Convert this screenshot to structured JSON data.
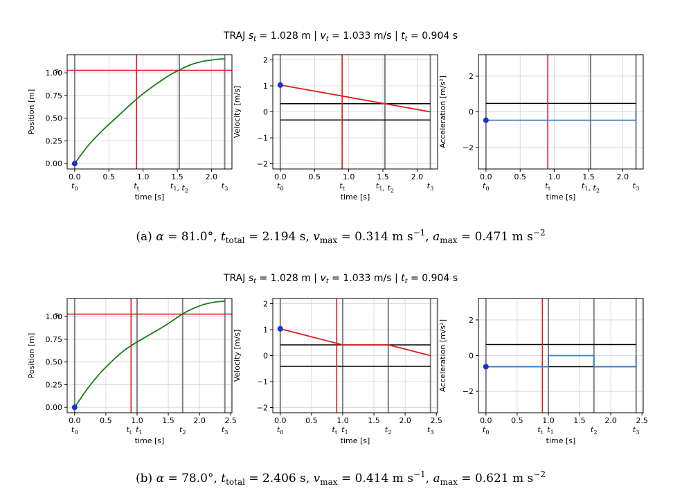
{
  "figures": [
    {
      "title": "TRAJ s_t = 1.028 m | v_t = 1.033 m/s | t_t = 0.904 s",
      "caption": "(a) α = 81.0°, t_total = 2.194 s, v_max = 0.314 m s^-1, a_max = 0.471 m s^-2"
    },
    {
      "title": "TRAJ s_t = 1.028 m | v_t = 1.033 m/s | t_t = 0.904 s",
      "caption": "(b) α = 78.0°, t_total = 2.406 s, v_max = 0.414 m s^-1, a_max = 0.621 m s^-2"
    }
  ],
  "colors": {
    "position_curve": "#1a7a1a",
    "velocity_curve": "#e11b1b",
    "acceleration_curve": "#3b7fc0",
    "target_line": "#e11b1b",
    "limit_line": "#000000",
    "phase_line": "#808080",
    "start_marker": "#1f2fd6",
    "grid": "#d0d0d0"
  },
  "chart_data": [
    {
      "type": "line",
      "figure": "a",
      "panel": "position",
      "xlabel": "time [s]",
      "ylabel": "Position [m]",
      "xlim": [
        -0.11,
        2.3
      ],
      "ylim": [
        -0.06,
        1.2
      ],
      "xticks": [
        0.0,
        0.5,
        1.0,
        1.5,
        2.0
      ],
      "xticklabels": [
        "0.0",
        "0.5",
        "1.0",
        "1.5",
        "2.0"
      ],
      "yticks": [
        0.0,
        0.25,
        0.5,
        0.75,
        1.0
      ],
      "yticklabels": [
        "0.00",
        "0.25",
        "0.50",
        "0.75",
        "1.00"
      ],
      "phase_times": [
        0.0,
        0.904,
        1.53,
        2.194
      ],
      "phase_labels": [
        "t_0",
        "t_t",
        "t_1, t_2",
        "t_3"
      ],
      "target_time": 0.904,
      "target_value": 1.028,
      "target_value_label": "s_t",
      "x": [
        0.0,
        0.2,
        0.4,
        0.6,
        0.8,
        0.904,
        1.0,
        1.2,
        1.4,
        1.53,
        1.7,
        1.9,
        2.1,
        2.194
      ],
      "y": [
        0.0,
        0.2,
        0.36,
        0.5,
        0.64,
        0.71,
        0.77,
        0.88,
        0.98,
        1.03,
        1.09,
        1.13,
        1.15,
        1.155
      ],
      "markers": [
        {
          "x": 0.0,
          "y": 0.0
        }
      ],
      "grid": true
    },
    {
      "type": "line",
      "figure": "a",
      "panel": "velocity",
      "xlabel": "time [s]",
      "ylabel": "Velocity [m/s]",
      "xlim": [
        -0.11,
        2.3
      ],
      "ylim": [
        -2.2,
        2.2
      ],
      "xticks": [
        0.0,
        0.5,
        1.0,
        1.5,
        2.0
      ],
      "xticklabels": [
        "0.0",
        "0.5",
        "1.0",
        "1.5",
        "2.0"
      ],
      "yticks": [
        -2,
        -1,
        0,
        1,
        2
      ],
      "yticklabels": [
        "−2",
        "−1",
        "0",
        "1",
        "2"
      ],
      "phase_times": [
        0.0,
        0.904,
        1.53,
        2.194
      ],
      "phase_labels": [
        "t_0",
        "t_t",
        "t_1, t_2",
        "t_3"
      ],
      "target_time": 0.904,
      "limits": [
        0.314,
        -0.314
      ],
      "x": [
        0.0,
        1.53,
        2.194
      ],
      "y": [
        1.033,
        0.314,
        0.0
      ],
      "markers": [
        {
          "x": 0.0,
          "y": 1.033
        }
      ],
      "grid": true
    },
    {
      "type": "line",
      "figure": "a",
      "panel": "acceleration",
      "xlabel": "time [s]",
      "ylabel": "Acceleration [m/s²]",
      "xlim": [
        -0.11,
        2.3
      ],
      "ylim": [
        -3.2,
        3.2
      ],
      "xticks": [
        0.0,
        0.5,
        1.0,
        1.5,
        2.0
      ],
      "xticklabels": [
        "0.0",
        "0.5",
        "1.0",
        "1.5",
        "2.0"
      ],
      "yticks": [
        -2,
        0,
        2
      ],
      "yticklabels": [
        "−2",
        "0",
        "2"
      ],
      "phase_times": [
        0.0,
        0.904,
        1.53,
        2.194
      ],
      "phase_labels": [
        "t_0",
        "t_t",
        "t_1, t_2",
        "t_3"
      ],
      "target_time": 0.904,
      "limits": [
        0.471
      ],
      "x": [
        0.0,
        2.194,
        2.194
      ],
      "y": [
        -0.471,
        -0.471,
        0.0
      ],
      "markers": [
        {
          "x": 0.0,
          "y": -0.471
        }
      ],
      "grid": true
    },
    {
      "type": "line",
      "figure": "b",
      "panel": "position",
      "xlabel": "time [s]",
      "ylabel": "Position [m]",
      "xlim": [
        -0.12,
        2.52
      ],
      "ylim": [
        -0.06,
        1.2
      ],
      "xticks": [
        0.0,
        0.5,
        1.0,
        1.5,
        2.0,
        2.5
      ],
      "xticklabels": [
        "0.0",
        "0.5",
        "1.0",
        "1.5",
        "2.0",
        "2.5"
      ],
      "yticks": [
        0.0,
        0.25,
        0.5,
        0.75,
        1.0
      ],
      "yticklabels": [
        "0.00",
        "0.25",
        "0.50",
        "0.75",
        "1.00"
      ],
      "phase_times": [
        0.0,
        0.904,
        1.0,
        1.73,
        2.406
      ],
      "phase_labels": [
        "t_0",
        "t_t",
        "t_1",
        "t_2",
        "t_3"
      ],
      "target_time": 0.904,
      "target_value": 1.028,
      "target_value_label": "s_t",
      "x": [
        0.0,
        0.2,
        0.4,
        0.6,
        0.8,
        1.0,
        1.2,
        1.4,
        1.6,
        1.73,
        1.9,
        2.1,
        2.3,
        2.406
      ],
      "y": [
        0.0,
        0.2,
        0.37,
        0.51,
        0.63,
        0.72,
        0.8,
        0.88,
        0.97,
        1.03,
        1.09,
        1.14,
        1.165,
        1.17
      ],
      "markers": [
        {
          "x": 0.0,
          "y": 0.0
        }
      ],
      "grid": true
    },
    {
      "type": "line",
      "figure": "b",
      "panel": "velocity",
      "xlabel": "time [s]",
      "ylabel": "Velocity [m/s]",
      "xlim": [
        -0.12,
        2.52
      ],
      "ylim": [
        -2.2,
        2.2
      ],
      "xticks": [
        0.0,
        0.5,
        1.0,
        1.5,
        2.0,
        2.5
      ],
      "xticklabels": [
        "0.0",
        "0.5",
        "1.0",
        "1.5",
        "2.0",
        "2.5"
      ],
      "yticks": [
        -2,
        -1,
        0,
        1,
        2
      ],
      "yticklabels": [
        "−2",
        "−1",
        "0",
        "1",
        "2"
      ],
      "phase_times": [
        0.0,
        0.904,
        1.0,
        1.73,
        2.406
      ],
      "phase_labels": [
        "t_0",
        "t_t",
        "t_1",
        "t_2",
        "t_3"
      ],
      "target_time": 0.904,
      "limits": [
        0.414,
        -0.414
      ],
      "x": [
        0.0,
        1.0,
        1.73,
        2.406
      ],
      "y": [
        1.033,
        0.414,
        0.414,
        0.0
      ],
      "markers": [
        {
          "x": 0.0,
          "y": 1.033
        }
      ],
      "grid": true
    },
    {
      "type": "line",
      "figure": "b",
      "panel": "acceleration",
      "xlabel": "time [s]",
      "ylabel": "Acceleration [m/s²]",
      "xlim": [
        -0.12,
        2.52
      ],
      "ylim": [
        -3.2,
        3.2
      ],
      "xticks": [
        0.0,
        0.5,
        1.0,
        1.5,
        2.0,
        2.5
      ],
      "xticklabels": [
        "0.0",
        "0.5",
        "1.0",
        "1.5",
        "2.0",
        "2.5"
      ],
      "yticks": [
        -2,
        0,
        2
      ],
      "yticklabels": [
        "−2",
        "0",
        "2"
      ],
      "phase_times": [
        0.0,
        0.904,
        1.0,
        1.73,
        2.406
      ],
      "phase_labels": [
        "t_0",
        "t_t",
        "t_1",
        "t_2",
        "t_3"
      ],
      "target_time": 0.904,
      "limits": [
        0.621,
        -0.621
      ],
      "x": [
        0.0,
        1.0,
        1.0,
        1.73,
        1.73,
        2.406,
        2.406
      ],
      "y": [
        -0.621,
        -0.621,
        0.0,
        0.0,
        -0.621,
        -0.621,
        0.0
      ],
      "markers": [
        {
          "x": 0.0,
          "y": -0.621
        }
      ],
      "grid": true
    }
  ]
}
